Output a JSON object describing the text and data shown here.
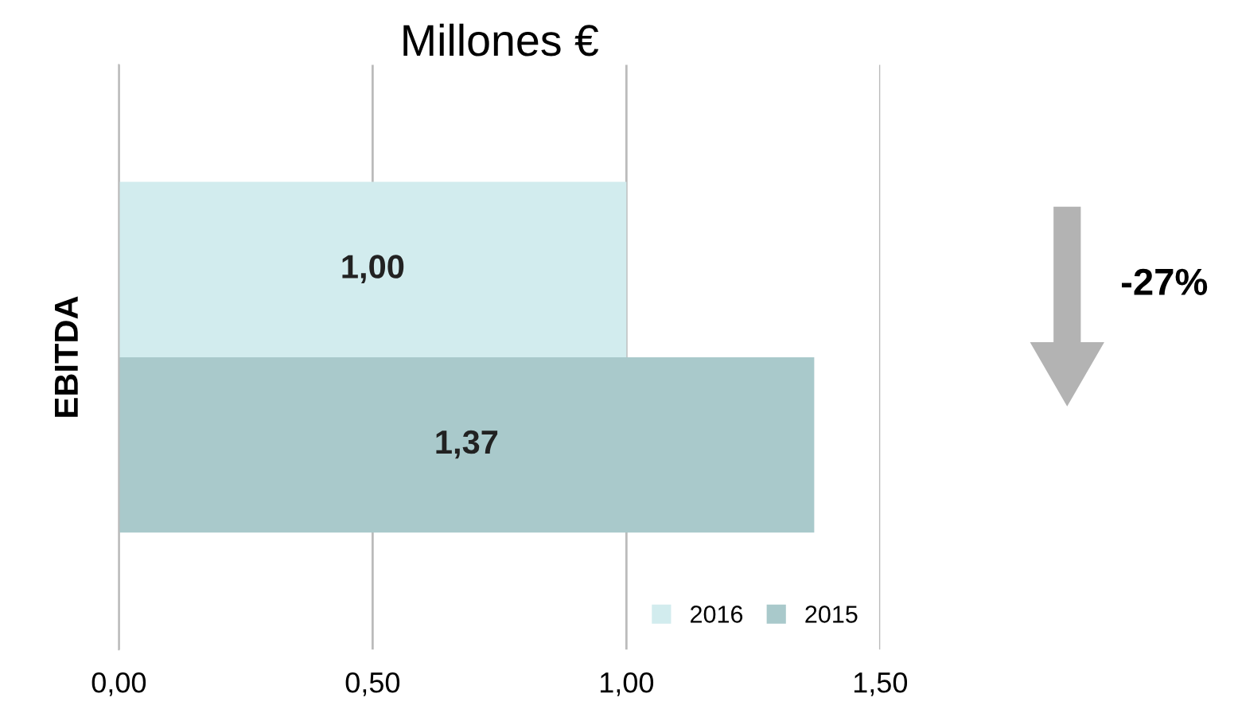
{
  "chart_data": {
    "type": "bar",
    "orientation": "horizontal",
    "title": "Millones €",
    "ylabel": "EBITDA",
    "categories": [
      null
    ],
    "series": [
      {
        "name": "2016",
        "color": "#d2ecee",
        "values": [
          1.0
        ],
        "value_labels": [
          "1,00"
        ]
      },
      {
        "name": "2015",
        "color": "#a9c9cb",
        "values": [
          1.37
        ],
        "value_labels": [
          "1,37"
        ]
      }
    ],
    "xlim": [
      0,
      1.5
    ],
    "xticks": [
      {
        "value": 0,
        "label": "0,00"
      },
      {
        "value": 0.5,
        "label": "0,50"
      },
      {
        "value": 1.0,
        "label": "1,00"
      },
      {
        "value": 1.5,
        "label": "1,50"
      }
    ],
    "grid": "x",
    "legend": "bottom right",
    "annotations": [
      "-27%"
    ]
  }
}
